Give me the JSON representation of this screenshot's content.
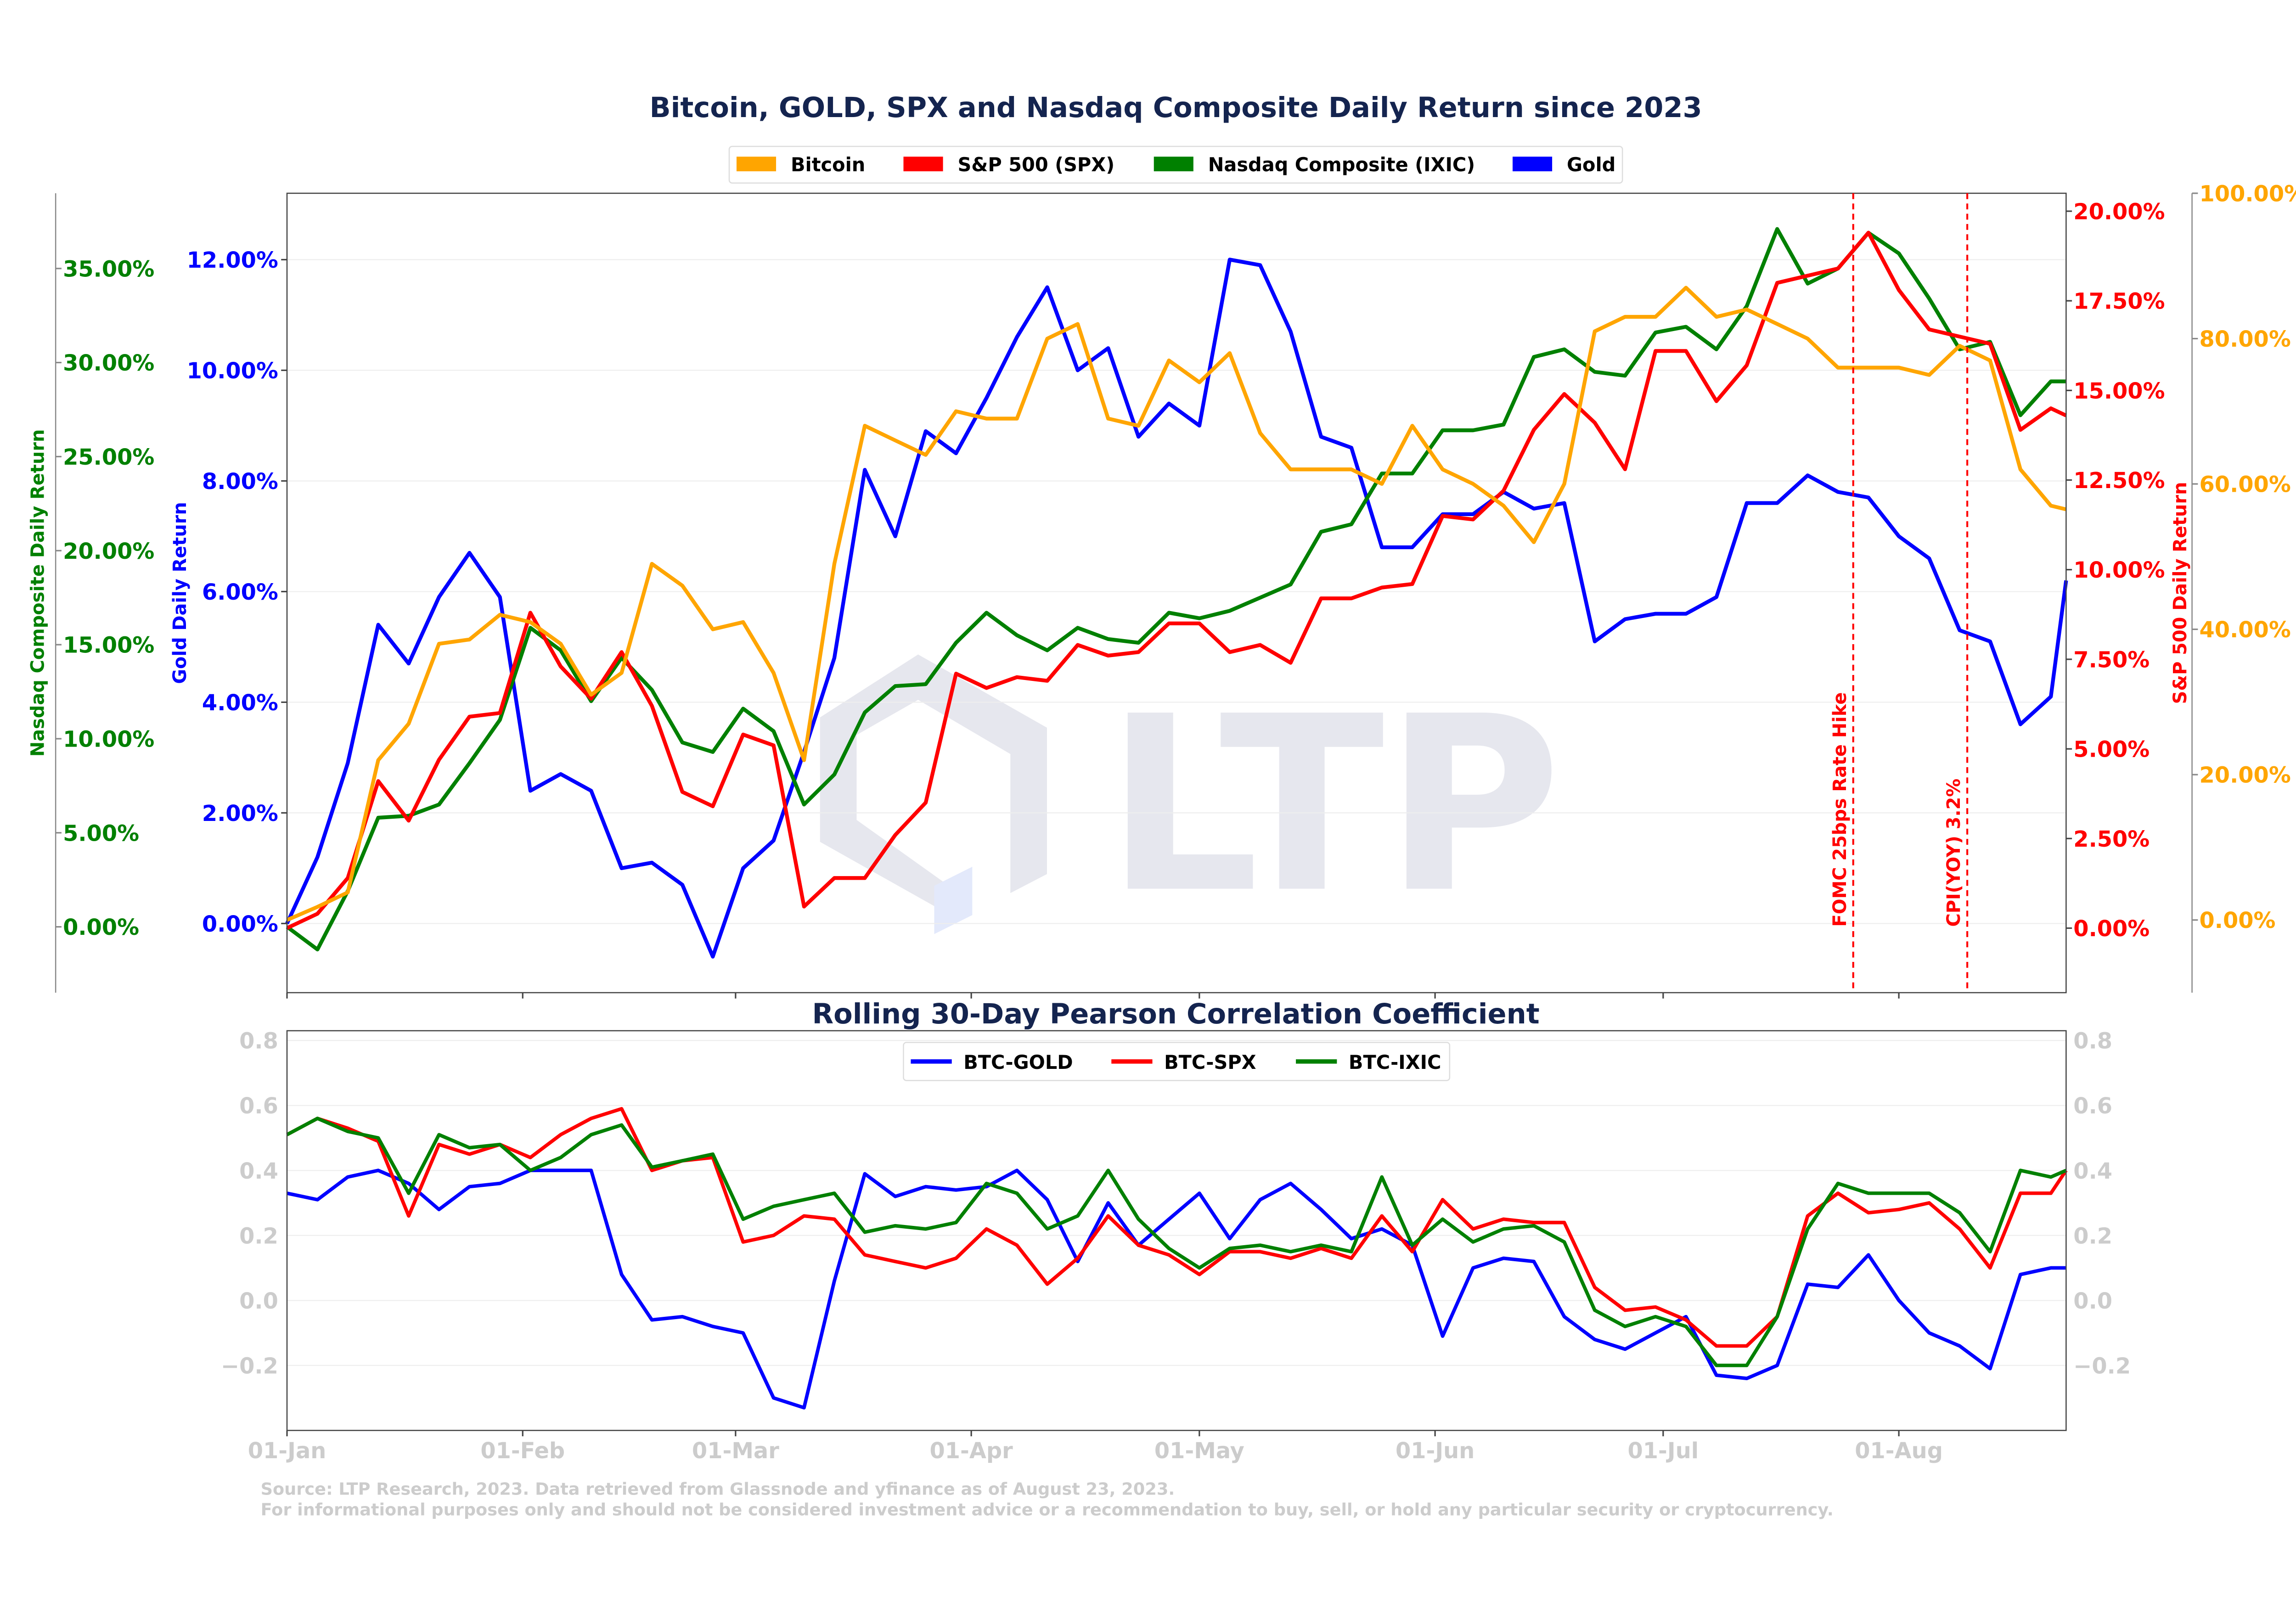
{
  "chart_data": [
    {
      "type": "line",
      "title": "Bitcoin, GOLD, SPX and Nasdaq Composite Daily Return since 2023",
      "legend": {
        "placement": "top-center",
        "entries": [
          "Bitcoin",
          "S&P 500 (SPX)",
          "Nasdaq Composite (IXIC)",
          "Gold"
        ]
      },
      "grid": true,
      "x": [
        "2023-01-01",
        "2023-01-05",
        "2023-01-09",
        "2023-01-13",
        "2023-01-17",
        "2023-01-21",
        "2023-01-25",
        "2023-01-29",
        "2023-02-02",
        "2023-02-06",
        "2023-02-10",
        "2023-02-14",
        "2023-02-18",
        "2023-02-22",
        "2023-02-26",
        "2023-03-02",
        "2023-03-06",
        "2023-03-10",
        "2023-03-14",
        "2023-03-18",
        "2023-03-22",
        "2023-03-26",
        "2023-03-30",
        "2023-04-03",
        "2023-04-07",
        "2023-04-11",
        "2023-04-15",
        "2023-04-19",
        "2023-04-23",
        "2023-04-27",
        "2023-05-01",
        "2023-05-05",
        "2023-05-09",
        "2023-05-13",
        "2023-05-17",
        "2023-05-21",
        "2023-05-25",
        "2023-05-29",
        "2023-06-02",
        "2023-06-06",
        "2023-06-10",
        "2023-06-14",
        "2023-06-18",
        "2023-06-22",
        "2023-06-26",
        "2023-06-30",
        "2023-07-04",
        "2023-07-08",
        "2023-07-12",
        "2023-07-16",
        "2023-07-20",
        "2023-07-24",
        "2023-07-28",
        "2023-08-01",
        "2023-08-05",
        "2023-08-09",
        "2023-08-13",
        "2023-08-17",
        "2023-08-21",
        "2023-08-23"
      ],
      "series": [
        {
          "name": "Bitcoin",
          "axis": "bitcoin",
          "color": "#ffa500",
          "values": [
            0,
            1.8,
            3.8,
            22,
            27,
            38,
            38.6,
            42,
            41,
            38,
            31,
            34,
            49,
            46,
            40,
            41,
            34,
            22,
            49,
            68,
            66,
            64,
            70,
            69,
            69,
            80,
            82,
            69,
            68,
            77,
            74,
            78,
            67,
            62,
            62,
            62,
            60,
            68,
            62,
            60,
            57,
            52,
            60,
            81,
            83,
            83,
            87,
            83,
            84,
            82,
            80,
            76,
            76,
            76,
            75,
            79,
            77,
            62,
            57,
            56.5
          ]
        },
        {
          "name": "S&P 500 (SPX)",
          "axis": "spx",
          "color": "#ff0000",
          "values": [
            0,
            0.4,
            1.4,
            4.1,
            3.0,
            4.7,
            5.9,
            6.0,
            8.8,
            7.3,
            6.4,
            7.7,
            6.2,
            3.8,
            3.4,
            5.4,
            5.1,
            0.6,
            1.4,
            1.4,
            2.6,
            3.5,
            7.1,
            6.7,
            7.0,
            6.9,
            7.9,
            7.6,
            7.7,
            8.5,
            8.5,
            7.7,
            7.9,
            7.4,
            9.2,
            9.2,
            9.5,
            9.6,
            11.5,
            11.4,
            12.2,
            13.9,
            14.9,
            14.1,
            12.8,
            16.1,
            16.1,
            14.7,
            15.7,
            18.0,
            18.2,
            18.4,
            19.4,
            17.8,
            16.7,
            16.5,
            16.3,
            13.9,
            14.5,
            14.3
          ]
        },
        {
          "name": "Nasdaq Composite (IXIC)",
          "axis": "nasdaq",
          "color": "#008000",
          "values": [
            0,
            -1.2,
            1.9,
            5.8,
            5.9,
            6.5,
            8.7,
            11.0,
            15.9,
            14.7,
            12.0,
            14.3,
            12.6,
            9.8,
            9.3,
            11.6,
            10.4,
            6.5,
            8.1,
            11.4,
            12.8,
            12.9,
            15.1,
            16.7,
            15.5,
            14.7,
            15.9,
            15.3,
            15.1,
            16.7,
            16.4,
            16.8,
            17.5,
            18.2,
            21.0,
            21.4,
            24.1,
            24.1,
            26.4,
            26.4,
            26.7,
            30.3,
            30.7,
            29.5,
            29.3,
            31.6,
            31.9,
            30.7,
            33.0,
            37.1,
            34.2,
            35.0,
            36.9,
            35.8,
            33.4,
            30.7,
            31.1,
            27.2,
            29.0,
            29.0
          ]
        },
        {
          "name": "Gold",
          "axis": "gold",
          "color": "#0000ff",
          "values": [
            0,
            1.2,
            2.9,
            5.4,
            4.7,
            5.9,
            6.7,
            5.9,
            2.4,
            2.7,
            2.4,
            1.0,
            1.1,
            0.7,
            -0.6,
            1.0,
            1.5,
            3.1,
            4.8,
            8.2,
            7.0,
            8.9,
            8.5,
            9.5,
            10.6,
            11.5,
            10.0,
            10.4,
            8.8,
            9.4,
            9.0,
            12.0,
            11.9,
            10.7,
            8.8,
            8.6,
            6.8,
            6.8,
            7.4,
            7.4,
            7.8,
            7.5,
            7.6,
            5.1,
            5.5,
            5.6,
            5.6,
            5.9,
            7.6,
            7.6,
            8.1,
            7.8,
            7.7,
            7.0,
            6.6,
            5.3,
            5.1,
            3.6,
            4.1,
            6.2
          ]
        }
      ],
      "axes": {
        "nasdaq": {
          "label": "Nasdaq Composite Daily Return",
          "color": "#008000",
          "range": [
            -3.5,
            39
          ],
          "ticks": [
            0,
            5,
            10,
            15,
            20,
            25,
            30,
            35
          ],
          "tick_labels": [
            "0.00%",
            "5.00%",
            "10.00%",
            "15.00%",
            "20.00%",
            "25.00%",
            "30.00%",
            "35.00%"
          ]
        },
        "gold": {
          "label": "Gold Daily Return",
          "color": "#0000ff",
          "range": [
            -1.25,
            13.2
          ],
          "ticks": [
            0,
            2,
            4,
            6,
            8,
            10,
            12
          ],
          "tick_labels": [
            "0.00%",
            "2.00%",
            "4.00%",
            "6.00%",
            "8.00%",
            "10.00%",
            "12.00%"
          ]
        },
        "spx": {
          "label": "S&P 500 Daily Return",
          "color": "#ff0000",
          "range": [
            -1.8,
            20.5
          ],
          "ticks": [
            0,
            2.5,
            5,
            7.5,
            10,
            12.5,
            15,
            17.5,
            20
          ],
          "tick_labels": [
            "0.00%",
            "2.50%",
            "5.00%",
            "7.50%",
            "10.00%",
            "12.50%",
            "15.00%",
            "17.50%",
            "20.00%"
          ]
        },
        "bitcoin": {
          "label": "",
          "color": "#ffa500",
          "range": [
            -10,
            100
          ],
          "ticks": [
            0,
            20,
            40,
            60,
            80,
            100
          ],
          "tick_labels": [
            "0.00%",
            "20.00%",
            "40.00%",
            "60.00%",
            "80.00%",
            "100.00%"
          ]
        }
      },
      "annotations": [
        {
          "date": "2023-07-26",
          "label": "FOMC 25bps Rate Hike",
          "color": "#ff0000"
        },
        {
          "date": "2023-08-10",
          "label": "CPI(YOY) 3.2%",
          "color": "#ff0000"
        }
      ],
      "watermark": "LTP"
    },
    {
      "type": "line",
      "title": "Rolling 30-Day Pearson Correlation Coefficient",
      "legend": {
        "placement": "top-center",
        "entries": [
          "BTC-GOLD",
          "BTC-SPX",
          "BTC-IXIC"
        ]
      },
      "grid": true,
      "ylim": [
        -0.4,
        0.83
      ],
      "y_ticks": [
        -0.2,
        0.0,
        0.2,
        0.4,
        0.6,
        0.8
      ],
      "y_tick_labels": [
        "−0.2",
        "0.0",
        "0.2",
        "0.4",
        "0.6",
        "0.8"
      ],
      "x_tick_dates": [
        "2023-01-01",
        "2023-02-01",
        "2023-03-01",
        "2023-04-01",
        "2023-05-01",
        "2023-06-01",
        "2023-07-01",
        "2023-08-01"
      ],
      "x_tick_labels": [
        "01-Jan",
        "01-Feb",
        "01-Mar",
        "01-Apr",
        "01-May",
        "01-Jun",
        "01-Jul",
        "01-Aug"
      ],
      "series": [
        {
          "name": "BTC-GOLD",
          "color": "#0000ff",
          "values": [
            0.33,
            0.31,
            0.38,
            0.4,
            0.36,
            0.28,
            0.35,
            0.36,
            0.4,
            0.4,
            0.4,
            0.08,
            -0.06,
            -0.05,
            -0.08,
            -0.1,
            -0.3,
            -0.33,
            0.06,
            0.39,
            0.32,
            0.35,
            0.34,
            0.35,
            0.4,
            0.31,
            0.12,
            0.3,
            0.17,
            0.25,
            0.33,
            0.19,
            0.31,
            0.36,
            0.28,
            0.19,
            0.22,
            0.17,
            -0.11,
            0.1,
            0.13,
            0.12,
            -0.05,
            -0.12,
            -0.15,
            -0.1,
            -0.05,
            -0.23,
            -0.24,
            -0.2,
            0.05,
            0.04,
            0.14,
            0.0,
            -0.1,
            -0.14,
            -0.21,
            0.08,
            0.1,
            0.1
          ]
        },
        {
          "name": "BTC-SPX",
          "color": "#ff0000",
          "values": [
            0.51,
            0.56,
            0.53,
            0.49,
            0.26,
            0.48,
            0.45,
            0.48,
            0.44,
            0.51,
            0.56,
            0.59,
            0.4,
            0.43,
            0.44,
            0.18,
            0.2,
            0.26,
            0.25,
            0.14,
            0.12,
            0.1,
            0.13,
            0.22,
            0.17,
            0.05,
            0.13,
            0.26,
            0.17,
            0.14,
            0.08,
            0.15,
            0.15,
            0.13,
            0.16,
            0.13,
            0.26,
            0.15,
            0.31,
            0.22,
            0.25,
            0.24,
            0.24,
            0.04,
            -0.03,
            -0.02,
            -0.06,
            -0.14,
            -0.14,
            -0.05,
            0.26,
            0.33,
            0.27,
            0.28,
            0.3,
            0.22,
            0.1,
            0.33,
            0.33,
            0.4
          ]
        },
        {
          "name": "BTC-IXIC",
          "color": "#008000",
          "values": [
            0.51,
            0.56,
            0.52,
            0.5,
            0.33,
            0.51,
            0.47,
            0.48,
            0.4,
            0.44,
            0.51,
            0.54,
            0.41,
            0.43,
            0.45,
            0.25,
            0.29,
            0.31,
            0.33,
            0.21,
            0.23,
            0.22,
            0.24,
            0.36,
            0.33,
            0.22,
            0.26,
            0.4,
            0.25,
            0.16,
            0.1,
            0.16,
            0.17,
            0.15,
            0.17,
            0.15,
            0.38,
            0.17,
            0.25,
            0.18,
            0.22,
            0.23,
            0.18,
            -0.03,
            -0.08,
            -0.05,
            -0.08,
            -0.2,
            -0.2,
            -0.05,
            0.22,
            0.36,
            0.33,
            0.33,
            0.33,
            0.27,
            0.15,
            0.4,
            0.38,
            0.4
          ]
        }
      ]
    }
  ],
  "footer": {
    "source": "Source: LTP Research, 2023. Data retrieved from Glassnode and yfinance as of August 23, 2023.",
    "disclaimer": "For informational purposes only and should not be considered investment advice or a recommendation to buy, sell, or hold any particular security or cryptocurrency."
  },
  "colors": {
    "title": "#14244f",
    "muted": "#cccccc",
    "watermark": "#e6e7ee"
  }
}
